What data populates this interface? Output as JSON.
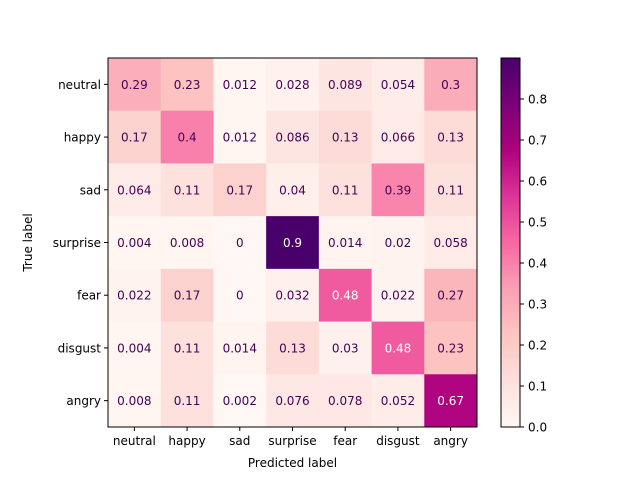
{
  "chart_data": {
    "type": "heatmap",
    "xlabel": "Predicted label",
    "ylabel": "True label",
    "x_categories": [
      "neutral",
      "happy",
      "sad",
      "surprise",
      "fear",
      "disgust",
      "angry"
    ],
    "y_categories": [
      "neutral",
      "happy",
      "sad",
      "surprise",
      "fear",
      "disgust",
      "angry"
    ],
    "values": [
      [
        0.29,
        0.23,
        0.012,
        0.028,
        0.089,
        0.054,
        0.3
      ],
      [
        0.17,
        0.4,
        0.012,
        0.086,
        0.13,
        0.066,
        0.13
      ],
      [
        0.064,
        0.11,
        0.17,
        0.04,
        0.11,
        0.39,
        0.11
      ],
      [
        0.004,
        0.008,
        0,
        0.9,
        0.014,
        0.02,
        0.058
      ],
      [
        0.022,
        0.17,
        0,
        0.032,
        0.48,
        0.022,
        0.27
      ],
      [
        0.004,
        0.11,
        0.014,
        0.13,
        0.03,
        0.48,
        0.23
      ],
      [
        0.008,
        0.11,
        0.002,
        0.076,
        0.078,
        0.052,
        0.67
      ]
    ],
    "value_labels": [
      [
        "0.29",
        "0.23",
        "0.012",
        "0.028",
        "0.089",
        "0.054",
        "0.3"
      ],
      [
        "0.17",
        "0.4",
        "0.012",
        "0.086",
        "0.13",
        "0.066",
        "0.13"
      ],
      [
        "0.064",
        "0.11",
        "0.17",
        "0.04",
        "0.11",
        "0.39",
        "0.11"
      ],
      [
        "0.004",
        "0.008",
        "0",
        "0.9",
        "0.014",
        "0.02",
        "0.058"
      ],
      [
        "0.022",
        "0.17",
        "0",
        "0.032",
        "0.48",
        "0.022",
        "0.27"
      ],
      [
        "0.004",
        "0.11",
        "0.014",
        "0.13",
        "0.03",
        "0.48",
        "0.23"
      ],
      [
        "0.008",
        "0.11",
        "0.002",
        "0.076",
        "0.078",
        "0.052",
        "0.67"
      ]
    ],
    "colormap": "RdPu",
    "colorbar": {
      "range": [
        0,
        0.9
      ],
      "ticks": [
        0.0,
        0.1,
        0.2,
        0.3,
        0.4,
        0.5,
        0.6,
        0.7,
        0.8
      ],
      "tick_labels": [
        "0.0",
        "0.1",
        "0.2",
        "0.3",
        "0.4",
        "0.5",
        "0.6",
        "0.7",
        "0.8"
      ],
      "placement": "right"
    },
    "text_colors": {
      "dark_cell": "#ffffff",
      "light_cell": "#440154"
    }
  }
}
